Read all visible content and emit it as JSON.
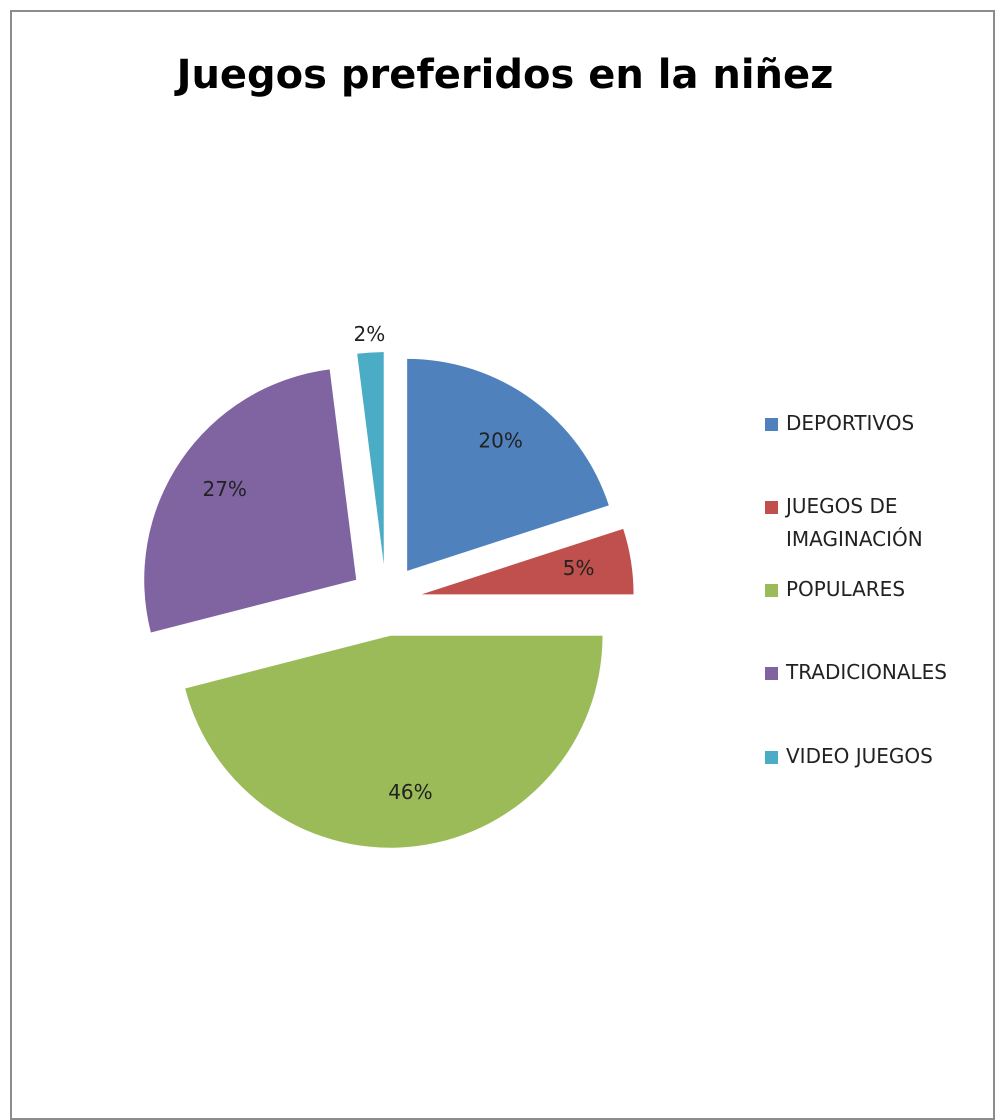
{
  "chart_data": {
    "type": "pie",
    "title": "Juegos preferidos en la niñez",
    "categories": [
      "DEPORTIVOS",
      "JUEGOS DE IMAGINACIÓN",
      "POPULARES",
      "TRADICIONALES",
      "VIDEO JUEGOS"
    ],
    "values": [
      20,
      5,
      46,
      27,
      2
    ],
    "value_labels": [
      "20%",
      "5%",
      "46%",
      "27%",
      "2%"
    ],
    "colors": [
      "#4f81bd",
      "#c0504d",
      "#9bbb59",
      "#8064a2",
      "#4bacc6"
    ],
    "legend": "right"
  }
}
